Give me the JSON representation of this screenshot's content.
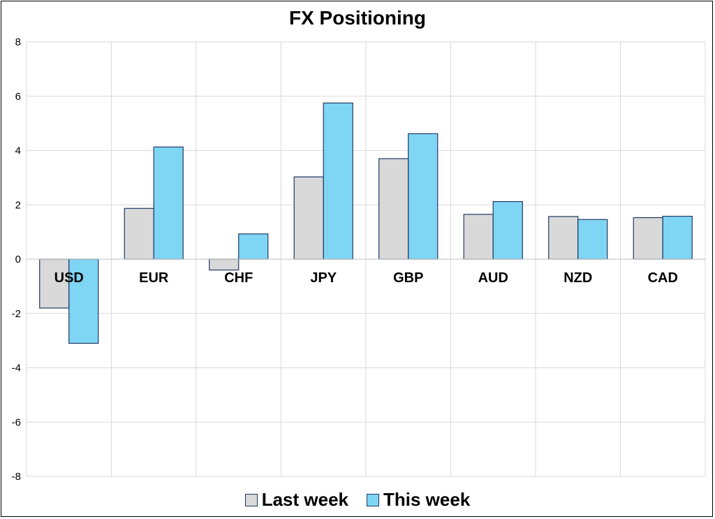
{
  "chart_data": {
    "type": "bar",
    "title": "FX Positioning",
    "categories": [
      "USD",
      "EUR",
      "CHF",
      "JPY",
      "GBP",
      "AUD",
      "NZD",
      "CAD"
    ],
    "series": [
      {
        "name": "Last week",
        "values": [
          -1.8,
          1.87,
          -0.4,
          3.03,
          3.7,
          1.65,
          1.57,
          1.53
        ],
        "color": "#d9d9d9"
      },
      {
        "name": "This week",
        "values": [
          -3.1,
          4.13,
          0.93,
          5.75,
          4.62,
          2.12,
          1.46,
          1.58
        ],
        "color": "#7fd6f4"
      }
    ],
    "ylim": [
      -8,
      8
    ],
    "yticks": [
      "-8",
      "-6",
      "-4",
      "-2",
      "0",
      "2",
      "4",
      "6",
      "8"
    ],
    "grid": true,
    "legend": "bottom",
    "border_color": "#1f3864"
  }
}
